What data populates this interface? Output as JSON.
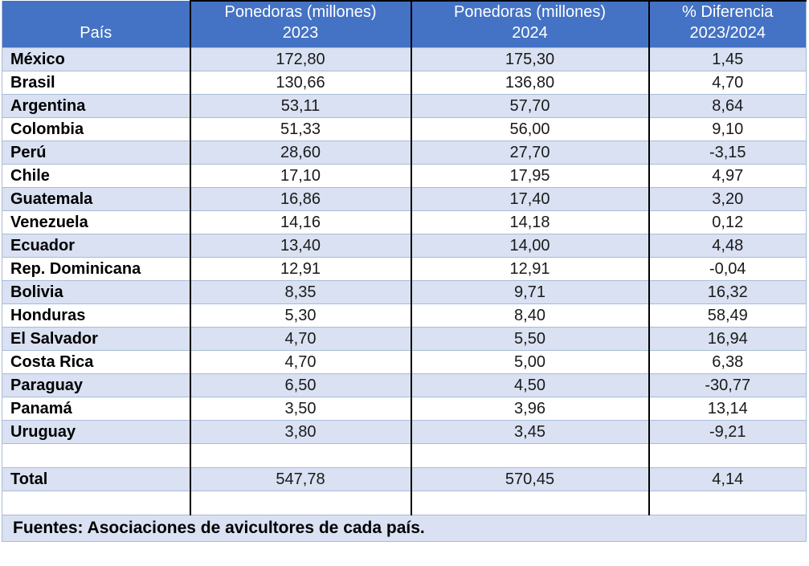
{
  "colors": {
    "header_bg": "#4472C4",
    "stripe_bg": "#D9E1F2",
    "grid_light": "#A9BCD6",
    "grid_dark": "#000000",
    "header_text": "#FFFFFF",
    "body_text": "#1A1A1A"
  },
  "table": {
    "headers": [
      {
        "line1": "",
        "line2": "País"
      },
      {
        "line1": "Ponedoras (millones)",
        "line2": "2023"
      },
      {
        "line1": "Ponedoras (millones)",
        "line2": "2024"
      },
      {
        "line1": "% Diferencia",
        "line2": "2023/2024"
      }
    ],
    "rows": [
      {
        "country": "México",
        "v2023": "172,80",
        "v2024": "175,30",
        "diff": "1,45"
      },
      {
        "country": "Brasil",
        "v2023": "130,66",
        "v2024": "136,80",
        "diff": "4,70"
      },
      {
        "country": "Argentina",
        "v2023": "53,11",
        "v2024": "57,70",
        "diff": "8,64"
      },
      {
        "country": "Colombia",
        "v2023": "51,33",
        "v2024": "56,00",
        "diff": "9,10"
      },
      {
        "country": "Perú",
        "v2023": "28,60",
        "v2024": "27,70",
        "diff": "-3,15"
      },
      {
        "country": "Chile",
        "v2023": "17,10",
        "v2024": "17,95",
        "diff": "4,97"
      },
      {
        "country": "Guatemala",
        "v2023": "16,86",
        "v2024": "17,40",
        "diff": "3,20"
      },
      {
        "country": "Venezuela",
        "v2023": "14,16",
        "v2024": "14,18",
        "diff": "0,12"
      },
      {
        "country": "Ecuador",
        "v2023": "13,40",
        "v2024": "14,00",
        "diff": "4,48"
      },
      {
        "country": "Rep. Dominicana",
        "v2023": "12,91",
        "v2024": "12,91",
        "diff": "-0,04"
      },
      {
        "country": "Bolivia",
        "v2023": "8,35",
        "v2024": "9,71",
        "diff": "16,32"
      },
      {
        "country": "Honduras",
        "v2023": "5,30",
        "v2024": "8,40",
        "diff": "58,49"
      },
      {
        "country": "El Salvador",
        "v2023": "4,70",
        "v2024": "5,50",
        "diff": "16,94"
      },
      {
        "country": "Costa Rica",
        "v2023": "4,70",
        "v2024": "5,00",
        "diff": "6,38"
      },
      {
        "country": "Paraguay",
        "v2023": "6,50",
        "v2024": "4,50",
        "diff": "-30,77"
      },
      {
        "country": "Panamá",
        "v2023": "3,50",
        "v2024": "3,96",
        "diff": "13,14"
      },
      {
        "country": "Uruguay",
        "v2023": "3,80",
        "v2024": "3,45",
        "diff": "-9,21"
      }
    ],
    "total": {
      "label": "Total",
      "v2023": "547,78",
      "v2024": "570,45",
      "diff": "4,14"
    },
    "source_note": "Fuentes: Asociaciones de avicultores de cada país."
  }
}
